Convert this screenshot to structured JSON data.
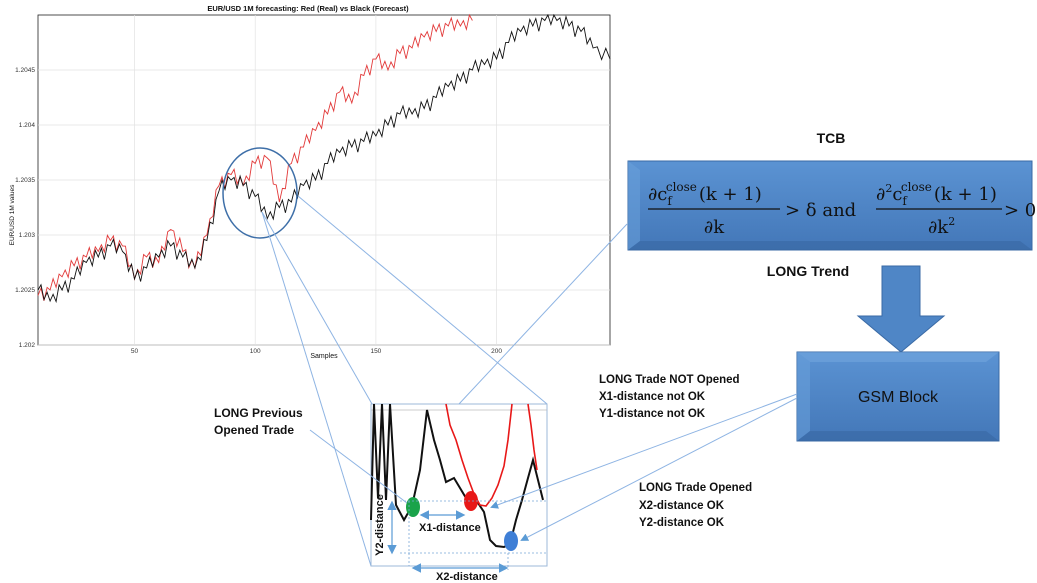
{
  "chart": {
    "title": "EUR/USD 1M forecasting: Red (Real) vs Black (Forecast)",
    "xlabel": "Samples",
    "ylabel": "EUR/USD 1M values"
  },
  "chart_data": {
    "type": "line",
    "title": "EUR/USD 1M forecasting: Red (Real) vs Black (Forecast)",
    "xlabel": "Samples",
    "ylabel": "EUR/USD 1M values",
    "xlim": [
      10,
      247
    ],
    "ylim": [
      1.202,
      1.205
    ],
    "x_ticks": [
      50,
      100,
      150,
      200
    ],
    "y_ticks": [
      1.202,
      1.2025,
      1.203,
      1.2035,
      1.204,
      1.2045
    ],
    "grid": true,
    "series": [
      {
        "color": "#e23a3a",
        "x": [
          10,
          15,
          20,
          25,
          30,
          35,
          40,
          45,
          50,
          55,
          60,
          65,
          70,
          75,
          80,
          85,
          90,
          95,
          100,
          105,
          110,
          115,
          120,
          125,
          130,
          135,
          140,
          145,
          150,
          155,
          160,
          165,
          170,
          175,
          180,
          185,
          190
        ],
        "y": [
          1.20245,
          1.2025,
          1.20262,
          1.20272,
          1.2028,
          1.20285,
          1.20295,
          1.2029,
          1.2026,
          1.2028,
          1.20275,
          1.20305,
          1.20285,
          1.2027,
          1.203,
          1.20345,
          1.20355,
          1.20345,
          1.20365,
          1.2037,
          1.2033,
          1.20365,
          1.2038,
          1.20395,
          1.2041,
          1.2043,
          1.2042,
          1.20445,
          1.2046,
          1.2045,
          1.20465,
          1.2047,
          1.2048,
          1.20485,
          1.2049,
          1.2049,
          1.20495
        ]
      },
      {
        "color": "#111111",
        "x": [
          10,
          15,
          20,
          25,
          30,
          35,
          40,
          45,
          50,
          55,
          60,
          65,
          70,
          75,
          80,
          85,
          90,
          95,
          100,
          105,
          110,
          115,
          120,
          125,
          130,
          135,
          140,
          145,
          150,
          155,
          160,
          165,
          170,
          175,
          180,
          185,
          190,
          195,
          200,
          205,
          210,
          215,
          220,
          225,
          230,
          235,
          240,
          247
        ],
        "y": [
          1.2025,
          1.2024,
          1.2025,
          1.2026,
          1.20275,
          1.2028,
          1.2029,
          1.20285,
          1.2026,
          1.2027,
          1.2028,
          1.2029,
          1.2028,
          1.2027,
          1.20295,
          1.2034,
          1.2035,
          1.20345,
          1.20335,
          1.20315,
          1.20325,
          1.2033,
          1.20345,
          1.2035,
          1.20365,
          1.20375,
          1.2038,
          1.20385,
          1.2039,
          1.204,
          1.2041,
          1.2041,
          1.20415,
          1.20425,
          1.20435,
          1.2044,
          1.2045,
          1.20455,
          1.2046,
          1.20475,
          1.20485,
          1.2049,
          1.20495,
          1.20495,
          1.2049,
          1.20485,
          1.2047,
          1.2046
        ]
      }
    ]
  },
  "zoom": {
    "label_prev": [
      "LONG Previous",
      "Opened Trade"
    ],
    "x1_label": "X1-distance",
    "x2_label": "X2-distance",
    "y2_label": "Y2-distance"
  },
  "tcb": {
    "title": "TCB",
    "formula": {
      "num1": "∂c",
      "sub1": "f",
      "sup1": "close",
      "arg1": "(k + 1)",
      "den1": "∂k",
      "mid": "> δ and",
      "num2": "∂",
      "sq2": "2",
      "c2": "c",
      "sub2": "f",
      "sup2": "close",
      "arg2": "(k + 1)",
      "den2": "∂k",
      "densq2": "2",
      "end": "> 0"
    },
    "trend": "LONG Trend"
  },
  "gsm": {
    "label": "GSM Block"
  },
  "not_opened": [
    "LONG Trade NOT Opened",
    "X1-distance not OK",
    "Y1-distance not OK"
  ],
  "opened": [
    "LONG Trade Opened",
    "X2-distance OK",
    "Y2-distance OK"
  ],
  "colors": {
    "box_fill": "#4f86c6",
    "box_stroke": "#3a6aa5",
    "real": "#e23a3a",
    "forecast": "#111111",
    "dot_green": "#1aa34a",
    "dot_red": "#e81818",
    "dot_blue": "#3f7fd6"
  }
}
